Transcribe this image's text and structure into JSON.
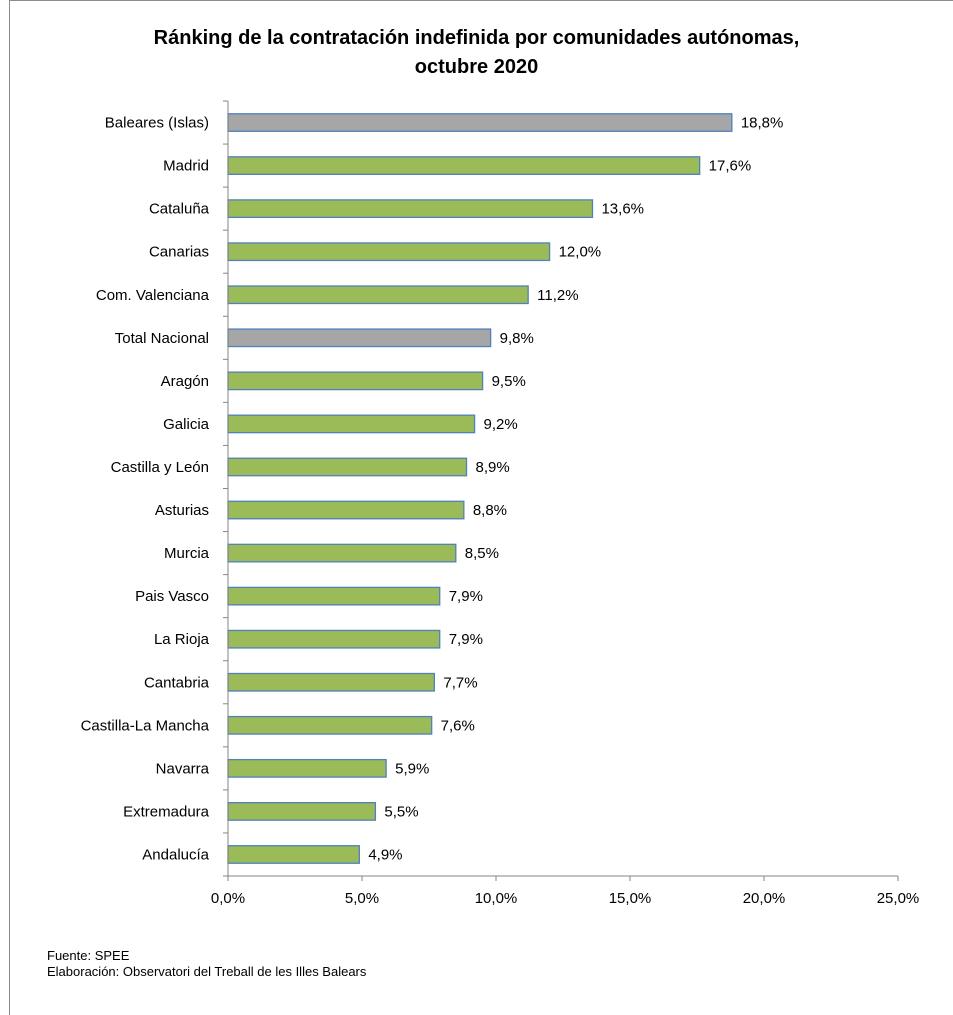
{
  "chart_data": {
    "type": "bar",
    "orientation": "horizontal",
    "title": "Ránking de la contratación indefinida por comunidades autónomas, octubre 2020",
    "title_lines": [
      "Ránking de la contratación indefinida por comunidades autónomas,",
      "octubre 2020"
    ],
    "categories": [
      "Baleares (Islas)",
      "Madrid",
      "Cataluña",
      "Canarias",
      "Com. Valenciana",
      "Total Nacional",
      "Aragón",
      "Galicia",
      "Castilla y León",
      "Asturias",
      "Murcia",
      "Pais Vasco",
      "La Rioja",
      "Cantabria",
      "Castilla-La Mancha",
      "Navarra",
      "Extremadura",
      "Andalucía"
    ],
    "values": [
      18.8,
      17.6,
      13.6,
      12.0,
      11.2,
      9.8,
      9.5,
      9.2,
      8.9,
      8.8,
      8.5,
      7.9,
      7.9,
      7.7,
      7.6,
      5.9,
      5.5,
      4.9
    ],
    "value_labels": [
      "18,8%",
      "17,6%",
      "13,6%",
      "12,0%",
      "11,2%",
      "9,8%",
      "9,5%",
      "9,2%",
      "8,9%",
      "8,8%",
      "8,5%",
      "7,9%",
      "7,9%",
      "7,7%",
      "7,6%",
      "5,9%",
      "5,5%",
      "4,9%"
    ],
    "highlighted": [
      "Baleares (Islas)",
      "Total Nacional"
    ],
    "xlim": [
      0,
      25
    ],
    "x_ticks": [
      0,
      5,
      10,
      15,
      20,
      25
    ],
    "x_tick_labels": [
      "0,0%",
      "5,0%",
      "10,0%",
      "15,0%",
      "20,0%",
      "25,0%"
    ],
    "xlabel": "",
    "ylabel": "",
    "grid": false,
    "legend": "none",
    "colors": {
      "bar": "#9bbb59",
      "bar_highlight": "#a6a6a6",
      "bar_border": "#4f81bd",
      "axis": "#868686"
    }
  },
  "footer": {
    "source": "Fuente: SPEE",
    "elaboration": "Elaboración: Observatori del Treball de les Illes Balears"
  }
}
